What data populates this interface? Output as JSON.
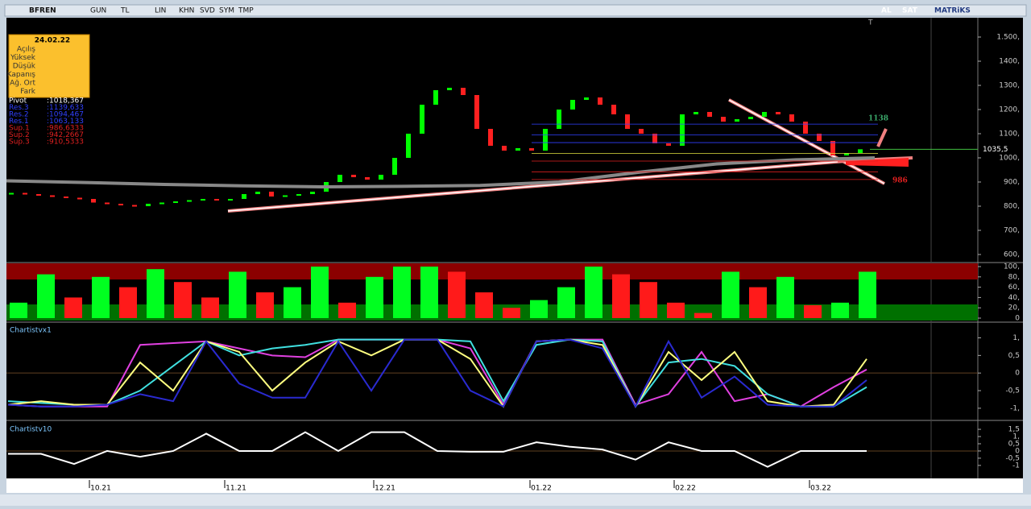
{
  "toolbar": {
    "left": [
      "BFREN",
      "GUN",
      "TL",
      "LIN",
      "KHN",
      "SVD",
      "SYM",
      "TMP"
    ],
    "buy": "AL",
    "sell": "SAT",
    "brand": "MATRiKS",
    "marker": "T"
  },
  "info_box": {
    "date": "24.02.22",
    "rows": [
      "Açılış",
      "Yüksek",
      "Düşük",
      "Kapanış",
      "Ağ. Ort",
      "Fark"
    ]
  },
  "pivots": [
    {
      "name": "Pivot",
      "value": 1018.367,
      "label": ":1018,367"
    },
    {
      "name": "Res.3",
      "value": 1139.633,
      "label": ":1139,633"
    },
    {
      "name": "Res.2",
      "value": 1094.467,
      "label": ":1094,467"
    },
    {
      "name": "Res.1",
      "value": 1063.133,
      "label": ":1063,133"
    },
    {
      "name": "Sup.1",
      "value": 986.6333,
      "label": ":986,6333"
    },
    {
      "name": "Sup.2",
      "value": 942.2667,
      "label": ":942,2667"
    },
    {
      "name": "Sup.3",
      "value": 910.5333,
      "label": ":910,5333"
    }
  ],
  "chart_data": [
    {
      "type": "candlestick",
      "closes": [
        855,
        850,
        845,
        840,
        835,
        830,
        815,
        810,
        805,
        800,
        810,
        815,
        820,
        825,
        830,
        825,
        830,
        850,
        860,
        840,
        845,
        850,
        860,
        900,
        930,
        920,
        910,
        930,
        1000,
        1100,
        1220,
        1280,
        1290,
        1260,
        1120,
        1050,
        1030,
        1040,
        1030,
        1120,
        1200,
        1240,
        1250,
        1220,
        1180,
        1120,
        1100,
        1060,
        1050,
        1180,
        1190,
        1170,
        1150,
        1160,
        1170,
        1190,
        1180,
        1150,
        1100,
        1070,
        1010,
        1020,
        1035.5
      ],
      "ma": [
        905,
        898,
        890,
        884,
        880,
        882,
        886,
        900,
        940,
        975,
        992,
        1000
      ],
      "ylim": [
        570,
        1580
      ],
      "yticks": [
        {
          "value": 600,
          "label": "600,"
        },
        {
          "value": 700,
          "label": "700,"
        },
        {
          "value": 800,
          "label": "800,"
        },
        {
          "value": 900,
          "label": "900,"
        },
        {
          "value": 1000,
          "label": "1000,"
        },
        {
          "value": 1100,
          "label": "1100,"
        },
        {
          "value": 1200,
          "label": "1200,"
        },
        {
          "value": 1300,
          "label": "1300,"
        },
        {
          "value": 1400,
          "label": "1400,"
        },
        {
          "value": 1500,
          "label": "1.500,"
        }
      ],
      "last_price": {
        "value": 1035.5,
        "label": "1035,5"
      },
      "annotations": [
        {
          "value": 1138,
          "label": "1138",
          "color": "#3aa86a"
        },
        {
          "value": 986,
          "label": "986",
          "color": "#e02020"
        }
      ]
    },
    {
      "type": "bar",
      "values": [
        30,
        85,
        40,
        80,
        60,
        95,
        70,
        40,
        90,
        50,
        60,
        100,
        30,
        80,
        100,
        100,
        90,
        50,
        20,
        35,
        60,
        100,
        85,
        70,
        30,
        10,
        90,
        60,
        80,
        25,
        30,
        90
      ],
      "ylim": [
        0,
        100
      ],
      "yticks": [
        {
          "value": 0,
          "label": "0"
        },
        {
          "value": 20,
          "label": "20,"
        },
        {
          "value": 40,
          "label": "40,"
        },
        {
          "value": 60,
          "label": "60,"
        },
        {
          "value": 80,
          "label": "80,"
        },
        {
          "value": 100,
          "label": "100,"
        }
      ]
    },
    {
      "type": "line",
      "title": "Chartistvx1",
      "ylim": [
        -1.3,
        1.4
      ],
      "yticks": [
        {
          "value": -1,
          "label": "-1,"
        },
        {
          "value": -0.5,
          "label": "-0,5"
        },
        {
          "value": 0,
          "label": "0"
        },
        {
          "value": 0.5,
          "label": "0,5"
        },
        {
          "value": 1,
          "label": "1,"
        }
      ],
      "series": [
        {
          "color": "#e040e0",
          "values": [
            -0.9,
            -0.95,
            -0.95,
            -0.95,
            0.8,
            0.85,
            0.9,
            0.7,
            0.5,
            0.45,
            0.95,
            0.95,
            0.95,
            0.95,
            0.7,
            -0.9,
            0.9,
            0.95,
            0.95,
            -0.9,
            -0.6,
            0.6,
            -0.8,
            -0.6,
            -0.95,
            -0.4,
            0.1
          ]
        },
        {
          "color": "#40e0e0",
          "values": [
            -0.8,
            -0.85,
            -0.9,
            -0.9,
            -0.5,
            0.2,
            0.9,
            0.5,
            0.7,
            0.8,
            0.95,
            0.95,
            0.95,
            0.95,
            0.9,
            -0.8,
            0.8,
            0.95,
            0.9,
            -0.95,
            0.3,
            0.4,
            0.2,
            -0.6,
            -0.95,
            -0.95,
            -0.4
          ]
        },
        {
          "color": "#ffff80",
          "values": [
            -0.9,
            -0.8,
            -0.9,
            -0.9,
            0.3,
            -0.5,
            0.9,
            0.6,
            -0.5,
            0.3,
            0.9,
            0.5,
            0.95,
            0.95,
            0.4,
            -0.95,
            0.9,
            0.95,
            0.8,
            -0.95,
            0.6,
            -0.2,
            0.6,
            -0.8,
            -0.95,
            -0.9,
            0.4
          ]
        },
        {
          "color": "#2a2ad0",
          "values": [
            -0.9,
            -0.95,
            -0.95,
            -0.9,
            -0.6,
            -0.8,
            0.9,
            -0.3,
            -0.7,
            -0.7,
            0.9,
            -0.5,
            0.95,
            0.95,
            -0.5,
            -0.95,
            0.9,
            0.95,
            0.7,
            -0.95,
            0.9,
            -0.7,
            -0.1,
            -0.9,
            -0.95,
            -0.95,
            -0.2
          ]
        }
      ]
    },
    {
      "type": "line",
      "title": "Chartistv10",
      "ylim": [
        -1.9,
        1.95
      ],
      "yticks": [
        {
          "value": -1,
          "label": "-1"
        },
        {
          "value": -0.5,
          "label": "-0,5"
        },
        {
          "value": 0,
          "label": "0"
        },
        {
          "value": 0.5,
          "label": "0,5"
        },
        {
          "value": 1,
          "label": "1,"
        },
        {
          "value": 1.5,
          "label": "1,5"
        }
      ],
      "series": [
        {
          "color": "#ffffff",
          "values": [
            -0.2,
            -0.2,
            -0.9,
            0,
            -0.4,
            0,
            1.2,
            0,
            0,
            1.3,
            0,
            1.3,
            1.3,
            0,
            -0.05,
            -0.05,
            0.6,
            0.3,
            0.1,
            -0.6,
            0.6,
            0,
            0,
            -1.1,
            0,
            0,
            0
          ]
        }
      ]
    }
  ],
  "dates": [
    "10.21",
    "11.21",
    "12.21",
    "01.22",
    "02.22",
    "03.22"
  ]
}
